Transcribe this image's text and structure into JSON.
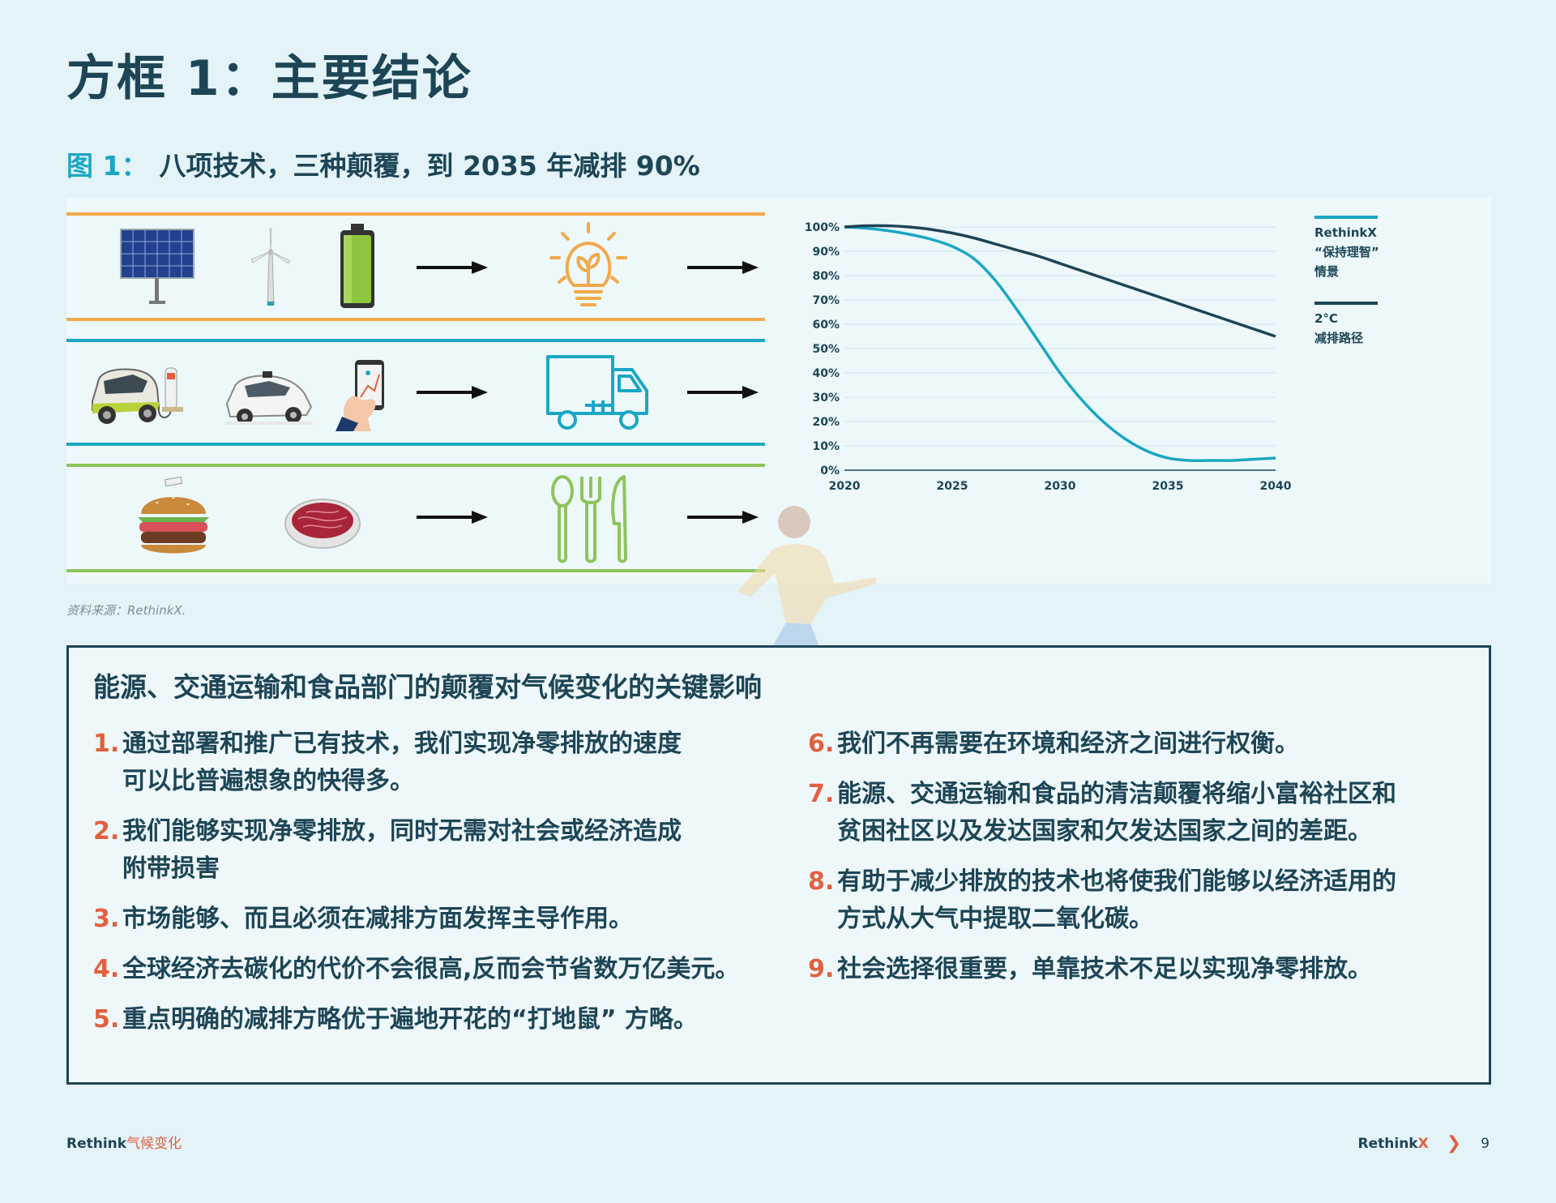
{
  "page": {
    "title": "方框 1：主要结论",
    "figure_label": "图 1：",
    "figure_title": "八项技术，三种颠覆，到 2035 年减排 90%",
    "source": "资料来源：RethinkX."
  },
  "icons": {
    "energy": [
      "solar-panel-icon",
      "wind-turbine-icon",
      "battery-icon",
      "lightbulb-leaf-icon"
    ],
    "transport": [
      "electric-car-icon",
      "autonomous-car-icon",
      "ride-hailing-phone-icon",
      "truck-icon"
    ],
    "food": [
      "burger-icon",
      "cultured-meat-icon",
      "cutlery-icon"
    ]
  },
  "chart_data": {
    "type": "line",
    "x": [
      2020,
      2021,
      2022,
      2023,
      2024,
      2025,
      2026,
      2027,
      2028,
      2029,
      2030,
      2031,
      2032,
      2033,
      2034,
      2035,
      2036,
      2037,
      2038,
      2039,
      2040
    ],
    "series": [
      {
        "name": "RethinkX “保持理智” 情景",
        "color": "#1aa7c3",
        "values": [
          100,
          99.5,
          98.5,
          97,
          95,
          92,
          87,
          78,
          66,
          53,
          40,
          29,
          20,
          13,
          8,
          5,
          4,
          4,
          4,
          4.5,
          5
        ]
      },
      {
        "name": "2°C 减排路径",
        "color": "#1d4556",
        "values": [
          100,
          100.5,
          100.5,
          100,
          99,
          97.5,
          95.5,
          93,
          90.5,
          88,
          85,
          82,
          79,
          76,
          73,
          70,
          67,
          64,
          61,
          58,
          55
        ]
      }
    ],
    "ylim": [
      0,
      100
    ],
    "y_ticks": [
      "0%",
      "10%",
      "20%",
      "30%",
      "40%",
      "50%",
      "60%",
      "70%",
      "80%",
      "90%",
      "100%"
    ],
    "x_ticks": [
      "2020",
      "2025",
      "2030",
      "2035",
      "2040"
    ],
    "grid": true,
    "legend_position": "right",
    "legend": [
      {
        "lines": [
          "RethinkX",
          "“保持理智”",
          "情景"
        ],
        "color": "#1aa7c3"
      },
      {
        "lines": [
          "2°C",
          "减排路径"
        ],
        "color": "#1d4556"
      }
    ]
  },
  "box": {
    "title": "能源、交通运输和食品部门的颠覆对气候变化的关键影响",
    "left_items": [
      {
        "num": "1.",
        "lines": [
          "通过部署和推广已有技术，我们实现净零排放的速度",
          "可以比普遍想象的快得多。"
        ]
      },
      {
        "num": "2.",
        "lines": [
          "我们能够实现净零排放，同时无需对社会或经济造成",
          "附带损害"
        ]
      },
      {
        "num": "3.",
        "lines": [
          "市场能够、而且必须在减排方面发挥主导作用。"
        ]
      },
      {
        "num": "4.",
        "lines": [
          "全球经济去碳化的代价不会很高,反而会节省数万亿美元。"
        ]
      },
      {
        "num": "5.",
        "lines": [
          "重点明确的减排方略优于遍地开花的“打地鼠” 方略。"
        ]
      }
    ],
    "right_items": [
      {
        "num": "6.",
        "lines": [
          "我们不再需要在环境和经济之间进行权衡。"
        ]
      },
      {
        "num": "7.",
        "lines": [
          "能源、交通运输和食品的清洁颠覆将缩小富裕社区和",
          "贫困社区以及发达国家和欠发达国家之间的差距。"
        ]
      },
      {
        "num": "8.",
        "lines": [
          "有助于减少排放的技术也将使我们能够以经济适用的",
          "方式从大气中提取二氧化碳。"
        ]
      },
      {
        "num": "9.",
        "lines": [
          "社会选择很重要，单靠技术不足以实现净零排放。"
        ]
      }
    ]
  },
  "footer": {
    "left_brand": "Rethink",
    "left_accent": "气候变化",
    "right_brand": "Rethink",
    "right_brand_x": "X",
    "chevron": "❯",
    "page_number": "9"
  }
}
